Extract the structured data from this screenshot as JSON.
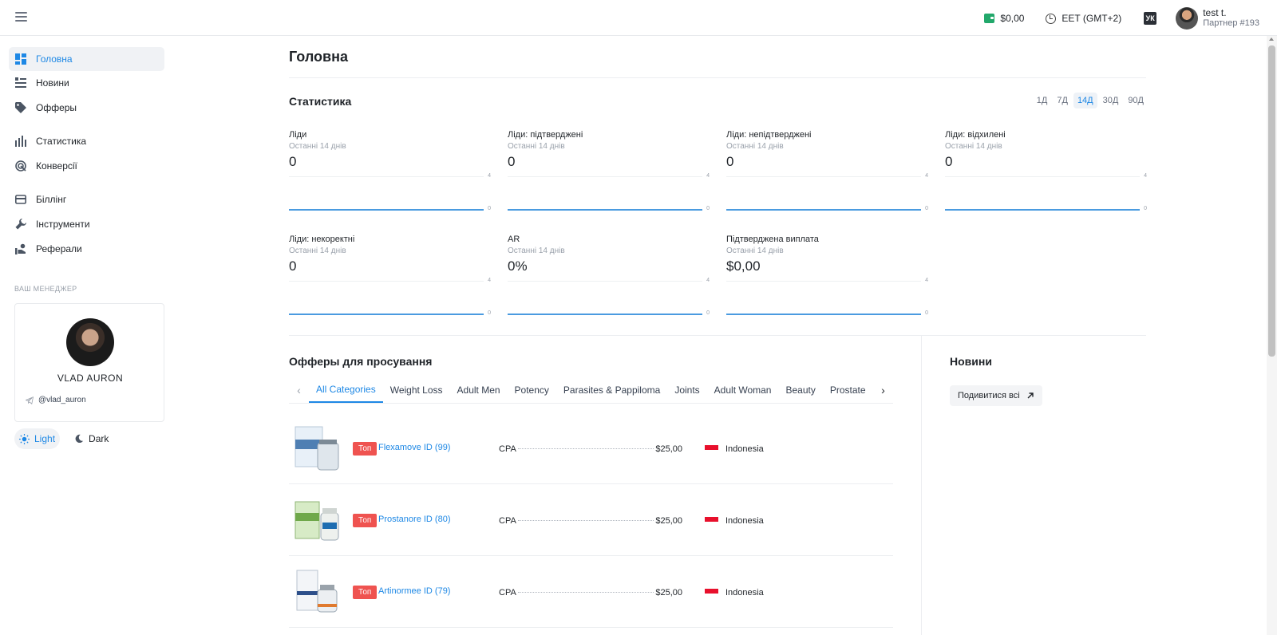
{
  "topbar": {
    "balance": "$0,00",
    "timezone": "EET (GMT+2)",
    "lang": "УК",
    "user_name": "test t.",
    "user_sub": "Партнер #193"
  },
  "sidebar": {
    "items": [
      {
        "label": "Головна",
        "icon": "dashboard-icon"
      },
      {
        "label": "Новини",
        "icon": "news-icon"
      },
      {
        "label": "Офферы",
        "icon": "tag-icon"
      },
      {
        "label": "Статистика",
        "icon": "bar-chart-icon"
      },
      {
        "label": "Конверсії",
        "icon": "target-icon"
      },
      {
        "label": "Біллінг",
        "icon": "card-icon"
      },
      {
        "label": "Інструменти",
        "icon": "wrench-icon"
      },
      {
        "label": "Реферали",
        "icon": "referral-icon"
      }
    ],
    "manager_title": "ВАШ МЕНЕДЖЕР",
    "manager_name": "VLAD AURON",
    "manager_tg": "@vlad_auron",
    "theme_light": "Light",
    "theme_dark": "Dark"
  },
  "main": {
    "title": "Головна",
    "stats_title": "Статистика",
    "periods": [
      "1Д",
      "7Д",
      "14Д",
      "30Д",
      "90Д"
    ],
    "stats": [
      {
        "label": "Ліди",
        "sub": "Останні 14 днів",
        "value": "0",
        "tick_top": "4",
        "tick_bottom": "0"
      },
      {
        "label": "Ліди: підтверджені",
        "sub": "Останні 14 днів",
        "value": "0",
        "tick_top": "4",
        "tick_bottom": "0"
      },
      {
        "label": "Ліди: непідтверджені",
        "sub": "Останні 14 днів",
        "value": "0",
        "tick_top": "4",
        "tick_bottom": "0"
      },
      {
        "label": "Ліди: відхилені",
        "sub": "Останні 14 днів",
        "value": "0",
        "tick_top": "4",
        "tick_bottom": "0"
      },
      {
        "label": "Ліди: некоректні",
        "sub": "Останні 14 днів",
        "value": "0",
        "tick_top": "4",
        "tick_bottom": "0"
      },
      {
        "label": "AR",
        "sub": "Останні 14 днів",
        "value": "0%",
        "tick_top": "4",
        "tick_bottom": "0"
      },
      {
        "label": "Підтверджена виплата",
        "sub": "Останні 14 днів",
        "value": "$0,00",
        "tick_top": "4",
        "tick_bottom": "0"
      }
    ],
    "offers_title": "Офферы для просування",
    "tabs": [
      "All Categories",
      "Weight Loss",
      "Adult Men",
      "Potency",
      "Parasites & Pappiloma",
      "Joints",
      "Adult Woman",
      "Beauty",
      "Prostate"
    ],
    "offers": [
      {
        "badge": "Топ",
        "name": "Flexamove ID (99)",
        "model": "CPA",
        "payout": "$25,00",
        "geo": "Indonesia"
      },
      {
        "badge": "Топ",
        "name": "Prostanore ID (80)",
        "model": "CPA",
        "payout": "$25,00",
        "geo": "Indonesia"
      },
      {
        "badge": "Топ",
        "name": "Artinormee ID (79)",
        "model": "CPA",
        "payout": "$25,00",
        "geo": "Indonesia"
      }
    ],
    "news_title": "Новини",
    "news_button": "Подивитися всі"
  },
  "colors": {
    "accent": "#1e88e5",
    "badge": "#ef5350",
    "wallet": "#22a86b"
  }
}
